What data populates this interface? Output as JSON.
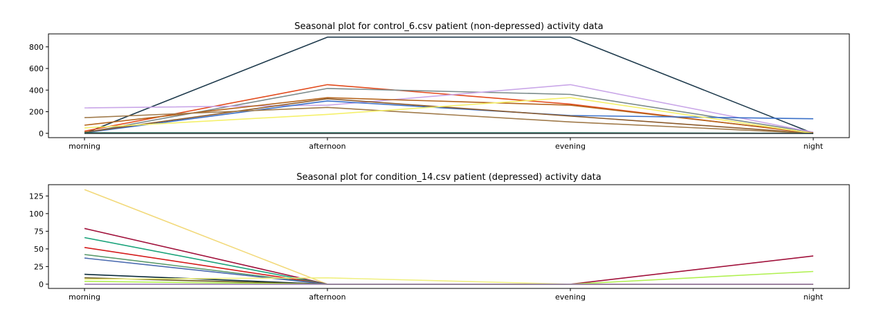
{
  "chart_data": [
    {
      "type": "line",
      "title": "Seasonal plot for control_6.csv patient (non-depressed) activity data",
      "xlabel": "",
      "ylabel": "",
      "categories": [
        "morning",
        "afternoon",
        "evening",
        "night"
      ],
      "ylim": [
        -40,
        920
      ],
      "yticks": [
        0,
        200,
        400,
        600,
        800
      ],
      "grid": false,
      "series": [
        {
          "color": "#1f3b4d",
          "values": [
            0,
            890,
            890,
            0
          ]
        },
        {
          "color": "#e24a1c",
          "values": [
            20,
            450,
            270,
            0
          ]
        },
        {
          "color": "#7a8a8a",
          "values": [
            5,
            415,
            360,
            10
          ]
        },
        {
          "color": "#c9a6e8",
          "values": [
            235,
            260,
            450,
            10
          ]
        },
        {
          "color": "#b5651d",
          "values": [
            75,
            330,
            260,
            5
          ]
        },
        {
          "color": "#3a70c8",
          "values": [
            5,
            300,
            165,
            135
          ]
        },
        {
          "color": "#8b5a2b",
          "values": [
            10,
            320,
            160,
            0
          ]
        },
        {
          "color": "#a07a4a",
          "values": [
            145,
            240,
            105,
            0
          ]
        },
        {
          "color": "#f5f06a",
          "values": [
            50,
            175,
            330,
            0
          ]
        },
        {
          "color": "#1a6e5a",
          "values": [
            5,
            5,
            5,
            0
          ]
        },
        {
          "color": "#2b3a3a",
          "values": [
            0,
            0,
            0,
            0
          ]
        }
      ]
    },
    {
      "type": "line",
      "title": "Seasonal plot for condition_14.csv patient (depressed) activity data",
      "xlabel": "",
      "ylabel": "",
      "categories": [
        "morning",
        "afternoon",
        "evening",
        "night"
      ],
      "ylim": [
        -6,
        141
      ],
      "yticks": [
        0,
        25,
        50,
        75,
        100,
        125
      ],
      "grid": false,
      "series": [
        {
          "color": "#f2d97a",
          "values": [
            134,
            0,
            0,
            0
          ]
        },
        {
          "color": "#a0103a",
          "values": [
            79,
            0,
            0,
            40
          ]
        },
        {
          "color": "#1aa37a",
          "values": [
            66,
            0,
            0,
            0
          ]
        },
        {
          "color": "#d41a1a",
          "values": [
            52,
            0,
            0,
            0
          ]
        },
        {
          "color": "#5a9a6a",
          "values": [
            42,
            0,
            0,
            0
          ]
        },
        {
          "color": "#4a6ab0",
          "values": [
            37,
            0,
            0,
            0
          ]
        },
        {
          "color": "#0a2a3a",
          "values": [
            14,
            0,
            0,
            0
          ]
        },
        {
          "color": "#6a5a1a",
          "values": [
            9,
            0,
            0,
            0
          ]
        },
        {
          "color": "#f0f080",
          "values": [
            7,
            9,
            0,
            0
          ]
        },
        {
          "color": "#b0f050",
          "values": [
            4,
            0,
            0,
            18
          ]
        },
        {
          "color": "#9a7ab0",
          "values": [
            0,
            0,
            0,
            0
          ]
        }
      ]
    }
  ]
}
